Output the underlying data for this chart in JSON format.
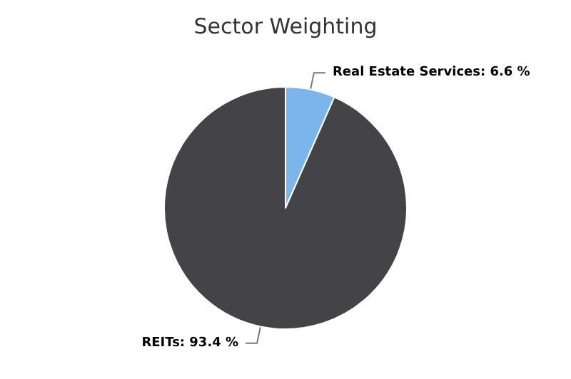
{
  "chart_data": {
    "type": "pie",
    "title": "Sector Weighting",
    "categories": [
      "Real Estate Services",
      "REITs"
    ],
    "values": [
      6.6,
      93.4
    ],
    "colors": [
      "#7cb5ec",
      "#434348"
    ],
    "value_labels": [
      "6.6 %",
      "93.4 %"
    ],
    "legend": false
  }
}
